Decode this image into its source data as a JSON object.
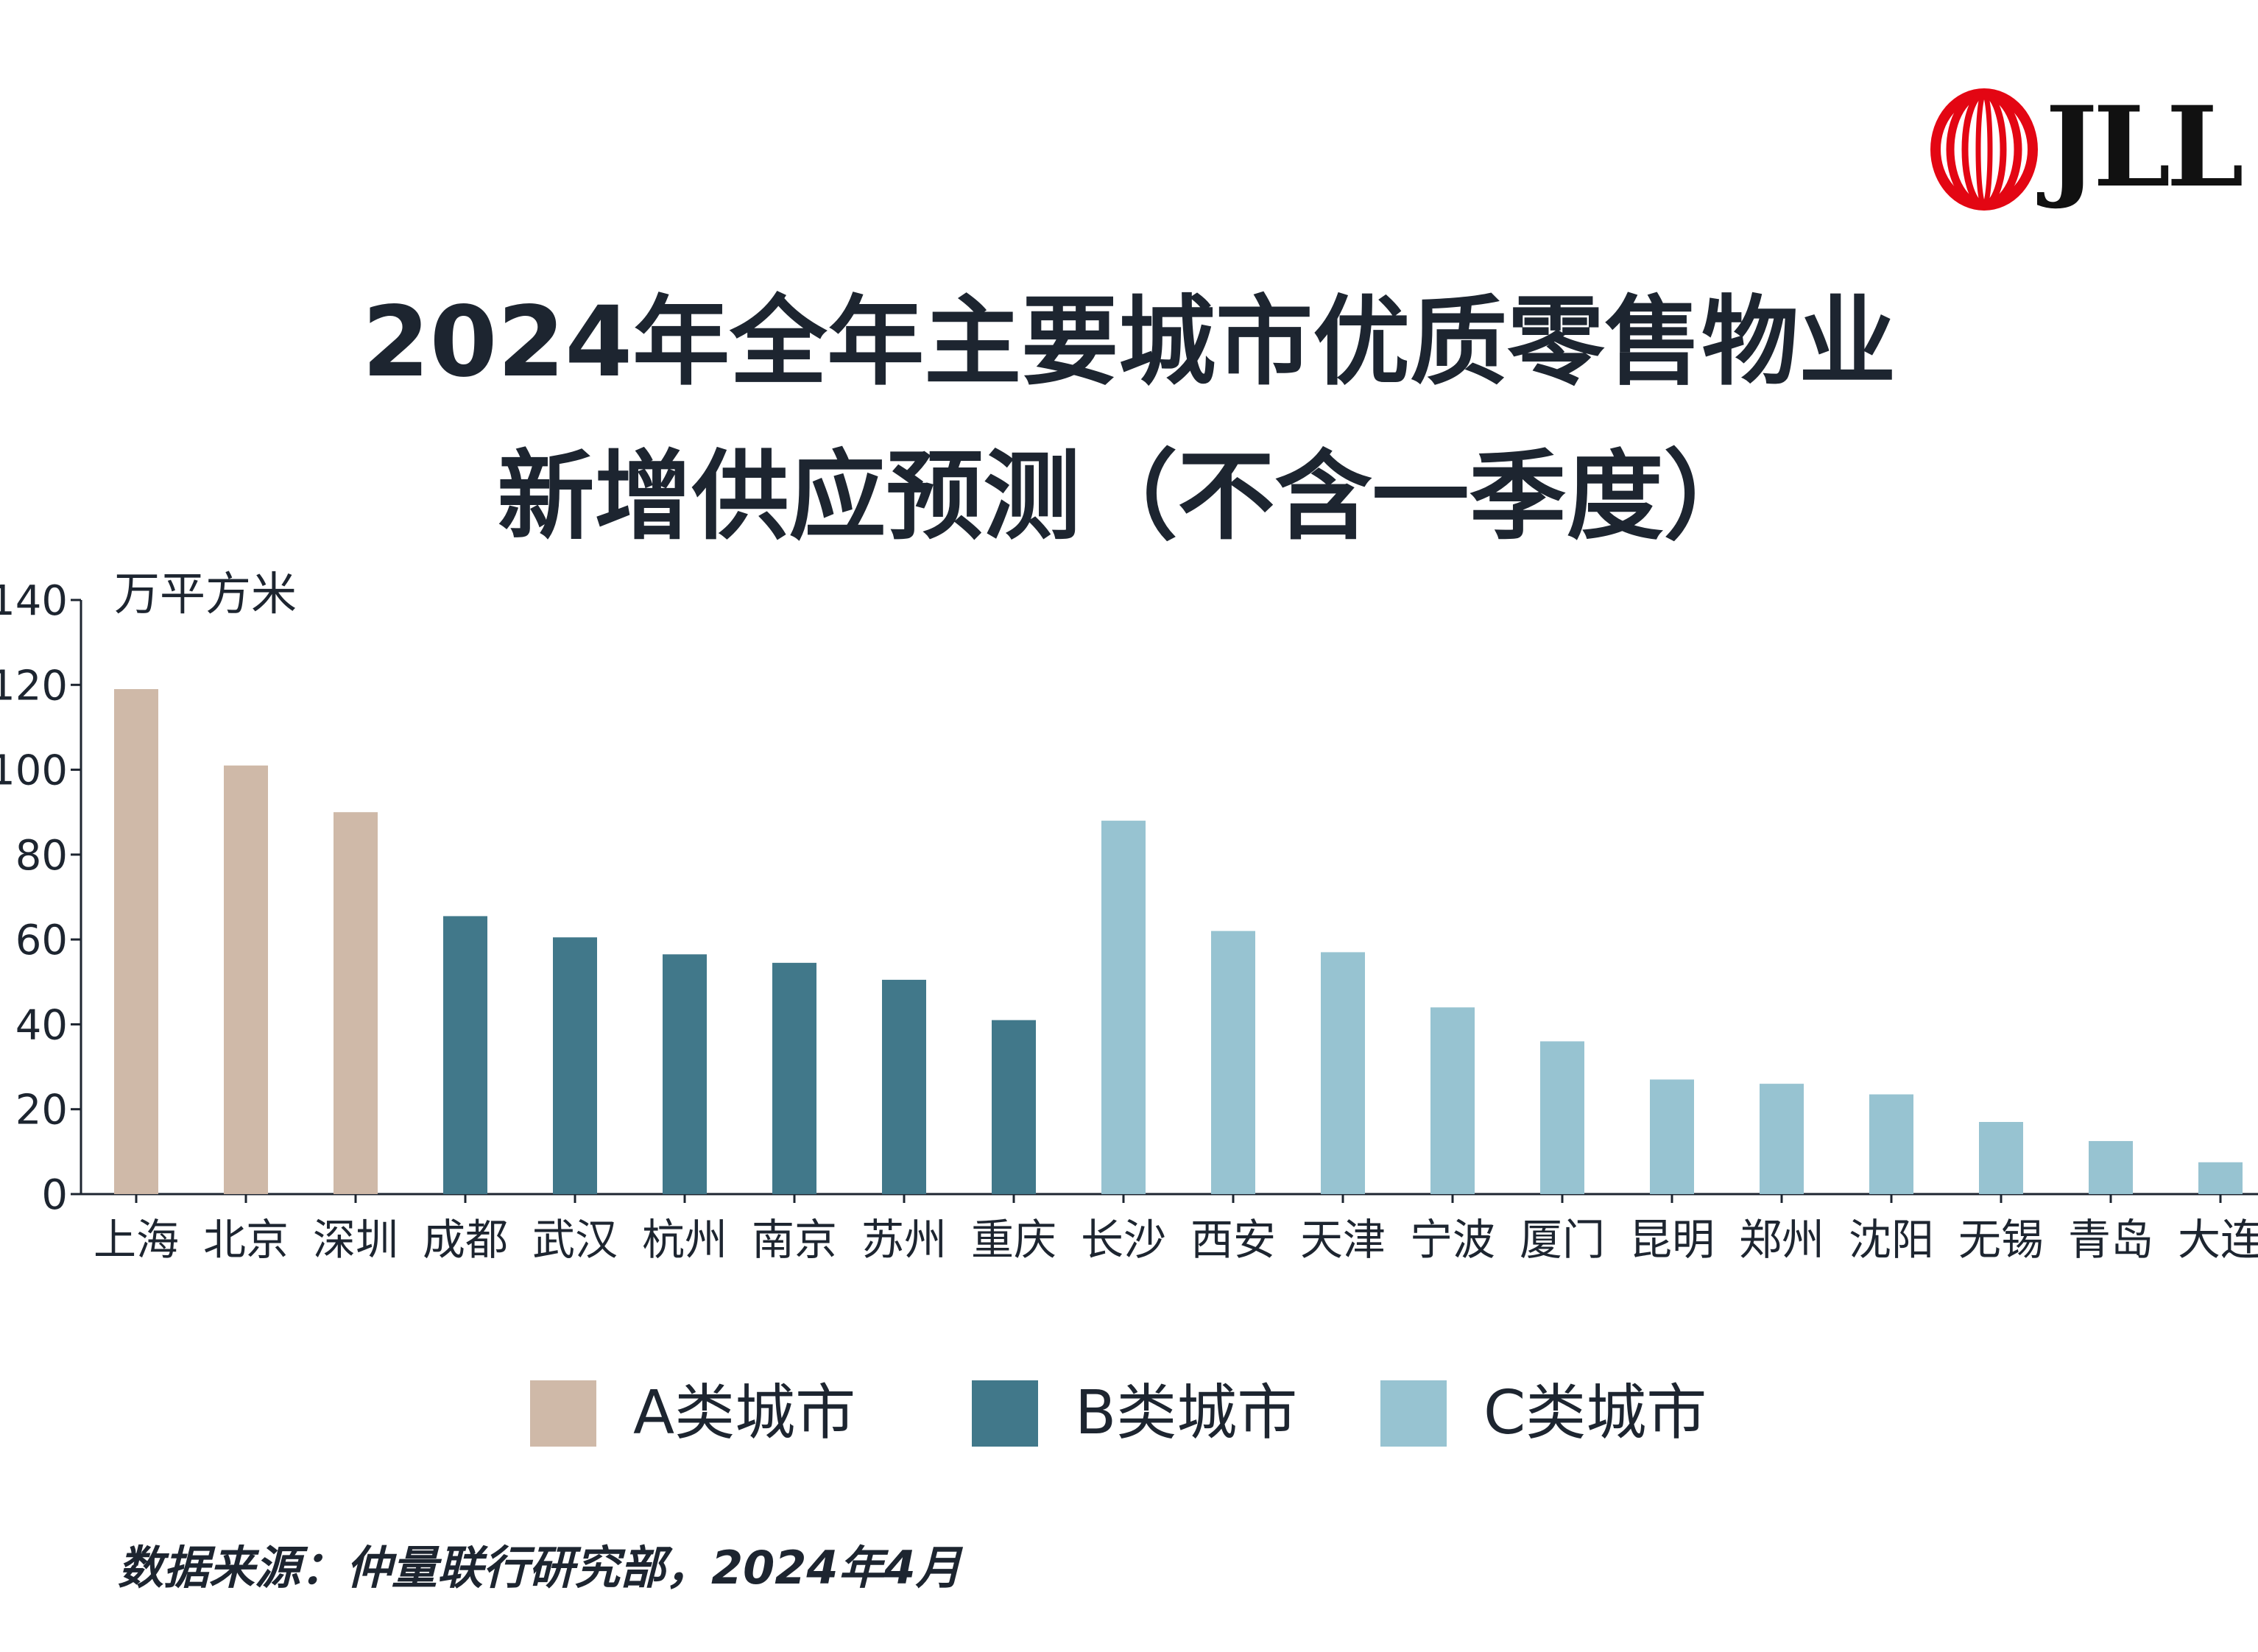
{
  "logo": {
    "text": "JLL",
    "color": "#e30613"
  },
  "title": {
    "line1": "2024年全年主要城市优质零售物业",
    "line2": "新增供应预测（不含一季度）"
  },
  "chart_data": {
    "type": "bar",
    "ylabel": "万平方米",
    "ylim": [
      0,
      140
    ],
    "yticks": [
      0,
      20,
      40,
      60,
      80,
      100,
      120,
      140
    ],
    "categories": [
      "上海",
      "北京",
      "深圳",
      "成都",
      "武汉",
      "杭州",
      "南京",
      "苏州",
      "重庆",
      "长沙",
      "西安",
      "天津",
      "宁波",
      "厦门",
      "昆明",
      "郑州",
      "沈阳",
      "无锡",
      "青岛",
      "大连"
    ],
    "values": [
      119,
      101,
      90,
      65.5,
      60.5,
      56.5,
      54.5,
      50.5,
      41,
      88,
      62,
      57,
      44,
      36,
      27,
      26,
      23.5,
      17,
      12.5,
      7.5
    ],
    "groups": [
      "A",
      "A",
      "A",
      "B",
      "B",
      "B",
      "B",
      "B",
      "B",
      "C",
      "C",
      "C",
      "C",
      "C",
      "C",
      "C",
      "C",
      "C",
      "C",
      "C"
    ],
    "colors": {
      "A": "#cfb9a8",
      "B": "#41788a",
      "C": "#97c3d1"
    },
    "grid": false,
    "legend_position": "bottom-center"
  },
  "legend": [
    {
      "label": "A类城市",
      "color": "#cfb9a8"
    },
    {
      "label": "B类城市",
      "color": "#41788a"
    },
    {
      "label": "C类城市",
      "color": "#97c3d1"
    }
  ],
  "source": "数据来源：仲量联行研究部，2024年4月"
}
